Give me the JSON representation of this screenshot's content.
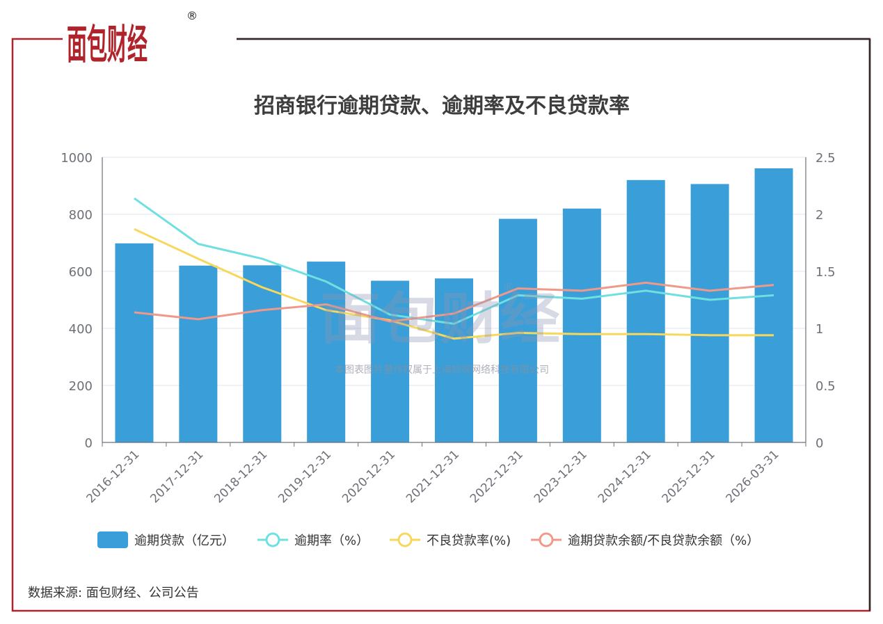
{
  "brand": {
    "logo_text": "面包财经",
    "registered_mark": "®",
    "primary_color": "#b1232a",
    "secondary_color": "#111111"
  },
  "chart_data": {
    "type": "bar",
    "title": "招商银行逾期贷款、逾期率及不良贷款率",
    "categories": [
      "2016-12-31",
      "2017-12-31",
      "2018-12-31",
      "2019-12-31",
      "2020-12-31",
      "2021-12-31",
      "2022-12-31",
      "2023-12-31",
      "2024-12-31",
      "2025-12-31",
      "2026-03-31"
    ],
    "y_left": {
      "ylim": [
        0,
        1000
      ],
      "ticks": [
        "0",
        "200",
        "400",
        "600",
        "800",
        "1000"
      ]
    },
    "y_right": {
      "ylim": [
        0,
        2.5
      ],
      "ticks": [
        "0",
        "0.5",
        "1",
        "1.5",
        "2",
        "2.5"
      ]
    },
    "grid": true,
    "legend_position": "bottom",
    "series": [
      {
        "name": "逾期贷款（亿元）",
        "type": "bar",
        "axis": "left",
        "color": "#3a9fd8",
        "values": [
          698,
          620,
          621,
          634,
          567,
          575,
          784,
          820,
          920,
          906,
          961
        ]
      },
      {
        "name": "逾期率（%）",
        "type": "line",
        "axis": "right",
        "color": "#6fdfe0",
        "values": [
          2.14,
          1.74,
          1.61,
          1.41,
          1.12,
          1.04,
          1.29,
          1.26,
          1.33,
          1.25,
          1.29
        ]
      },
      {
        "name": "不良贷款率(%)",
        "type": "line",
        "axis": "right",
        "color": "#f7d75c",
        "values": [
          1.87,
          1.61,
          1.36,
          1.16,
          1.07,
          0.91,
          0.96,
          0.95,
          0.95,
          0.94,
          0.94
        ]
      },
      {
        "name": "逾期贷款余额/不良贷款余额（%）",
        "type": "line",
        "axis": "right",
        "color": "#f0998a",
        "values": [
          1.14,
          1.08,
          1.16,
          1.21,
          1.06,
          1.13,
          1.35,
          1.33,
          1.4,
          1.33,
          1.38
        ]
      }
    ]
  },
  "watermark": {
    "logo_text": "面包财经",
    "registered_mark": "®",
    "notice": "本图表图片著作权属于上海妙探网络科技有限公司"
  },
  "footer": {
    "source": "数据来源: 面包财经、公司公告"
  }
}
